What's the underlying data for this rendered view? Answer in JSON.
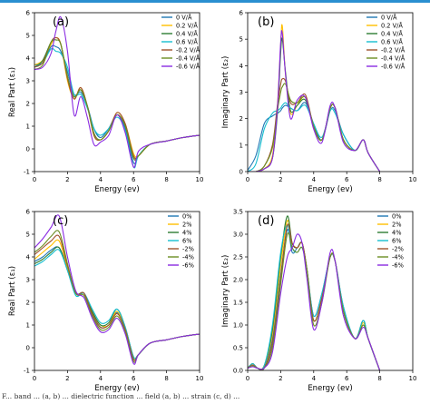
{
  "caption": "F... band ... (a, b) ... dielectric function ... field (a, b) ... strain (c, d) ...",
  "colors": [
    "#1f77b4",
    "#ffbf00",
    "#2e7d32",
    "#17becf",
    "#a0522d",
    "#6b8e23",
    "#8a2be2"
  ],
  "chart_data": [
    {
      "type": "line",
      "panel_label": "(a)",
      "xlabel": "Energy (ev)",
      "ylabel": "Real Part (ε₁)",
      "xlim": [
        0,
        10
      ],
      "ylim": [
        -1,
        6
      ],
      "xticks": [
        0,
        2,
        4,
        6,
        8,
        10
      ],
      "yticks": [
        -1,
        0,
        1,
        2,
        3,
        4,
        5,
        6
      ],
      "legend_position": "top-right",
      "x": [
        0,
        0.5,
        1.0,
        1.3,
        1.6,
        2.0,
        2.4,
        2.8,
        3.2,
        3.6,
        4.0,
        4.5,
        5.0,
        5.5,
        6.0,
        6.3,
        7.0,
        8.0,
        9.0,
        10.0
      ],
      "series": [
        {
          "name": "0 V/Å",
          "values": [
            3.7,
            3.8,
            4.5,
            4.5,
            4.3,
            3.4,
            2.4,
            2.5,
            1.9,
            0.9,
            0.5,
            0.9,
            1.5,
            0.9,
            -0.6,
            -0.3,
            0.2,
            0.35,
            0.5,
            0.6
          ]
        },
        {
          "name": "0.2 V/Å",
          "values": [
            3.7,
            3.9,
            4.6,
            4.9,
            4.6,
            3.0,
            2.2,
            2.7,
            1.9,
            0.6,
            0.4,
            0.8,
            1.6,
            1.1,
            -0.2,
            -0.3,
            0.2,
            0.35,
            0.5,
            0.6
          ]
        },
        {
          "name": "0.4 V/Å",
          "values": [
            3.6,
            3.9,
            4.7,
            4.8,
            4.6,
            3.2,
            2.3,
            2.6,
            1.9,
            0.7,
            0.4,
            0.8,
            1.5,
            1.0,
            -0.4,
            -0.3,
            0.2,
            0.35,
            0.5,
            0.6
          ]
        },
        {
          "name": "0.6 V/Å",
          "values": [
            3.6,
            3.8,
            4.4,
            4.3,
            4.2,
            3.6,
            2.4,
            2.4,
            1.8,
            0.9,
            0.6,
            0.9,
            1.4,
            0.8,
            -0.8,
            -0.3,
            0.2,
            0.35,
            0.5,
            0.6
          ]
        },
        {
          "name": "-0.2 V/Å",
          "values": [
            3.6,
            3.8,
            4.7,
            4.9,
            4.6,
            3.1,
            2.2,
            2.7,
            1.9,
            0.6,
            0.4,
            0.8,
            1.6,
            1.1,
            -0.3,
            -0.3,
            0.2,
            0.35,
            0.5,
            0.6
          ]
        },
        {
          "name": "-0.4 V/Å",
          "values": [
            3.5,
            3.7,
            4.7,
            4.8,
            4.6,
            3.2,
            2.3,
            2.6,
            1.9,
            0.7,
            0.4,
            0.8,
            1.5,
            1.0,
            -0.4,
            -0.3,
            0.2,
            0.35,
            0.5,
            0.6
          ]
        },
        {
          "name": "-0.6 V/Å",
          "values": [
            3.5,
            3.6,
            4.2,
            5.2,
            5.8,
            4.3,
            1.5,
            2.3,
            1.4,
            0.2,
            0.3,
            0.6,
            1.5,
            0.7,
            -0.8,
            -0.1,
            0.2,
            0.35,
            0.5,
            0.6
          ]
        }
      ]
    },
    {
      "type": "line",
      "panel_label": "(b)",
      "xlabel": "Energy (ev)",
      "ylabel": "Imaginary Part (ε₂)",
      "xlim": [
        0,
        10
      ],
      "ylim": [
        0,
        6
      ],
      "xticks": [
        0,
        2,
        4,
        6,
        8,
        10
      ],
      "yticks": [
        0,
        1,
        2,
        3,
        4,
        5,
        6
      ],
      "legend_position": "top-right",
      "x": [
        0,
        0.5,
        1.0,
        1.5,
        1.8,
        2.0,
        2.1,
        2.3,
        2.6,
        3.0,
        3.5,
        4.0,
        4.5,
        5.0,
        5.3,
        5.8,
        6.5,
        7.0,
        7.3,
        8.0
      ],
      "series": [
        {
          "name": "0 V/Å",
          "values": [
            0.05,
            0.6,
            1.8,
            2.1,
            2.2,
            2.3,
            2.4,
            2.5,
            2.4,
            2.3,
            2.6,
            1.8,
            1.2,
            2.3,
            2.3,
            1.4,
            0.8,
            1.2,
            0.7,
            0.0
          ]
        },
        {
          "name": "0.2 V/Å",
          "values": [
            0.0,
            0.0,
            0.1,
            0.6,
            2.5,
            4.8,
            5.5,
            3.6,
            2.2,
            2.5,
            2.8,
            1.7,
            1.2,
            2.4,
            2.4,
            1.2,
            0.8,
            1.2,
            0.7,
            0.0
          ]
        },
        {
          "name": "0.4 V/Å",
          "values": [
            0.0,
            0.0,
            0.1,
            0.5,
            2.2,
            4.5,
            5.0,
            3.7,
            2.3,
            2.5,
            2.7,
            1.7,
            1.2,
            2.4,
            2.4,
            1.2,
            0.8,
            1.2,
            0.7,
            0.0
          ]
        },
        {
          "name": "0.6 V/Å",
          "values": [
            0.0,
            0.3,
            1.6,
            2.2,
            2.3,
            2.4,
            2.5,
            2.6,
            2.4,
            2.3,
            2.5,
            1.8,
            1.3,
            2.3,
            2.2,
            1.4,
            0.8,
            1.2,
            0.7,
            0.0
          ]
        },
        {
          "name": "-0.2 V/Å",
          "values": [
            0.0,
            0.0,
            0.2,
            1.0,
            2.5,
            3.3,
            3.5,
            3.4,
            2.6,
            2.6,
            2.9,
            1.7,
            1.2,
            2.4,
            2.4,
            1.2,
            0.8,
            1.2,
            0.7,
            0.0
          ]
        },
        {
          "name": "-0.4 V/Å",
          "values": [
            0.0,
            0.0,
            0.2,
            0.9,
            2.3,
            3.0,
            3.2,
            3.3,
            2.7,
            2.6,
            2.8,
            1.7,
            1.2,
            2.4,
            2.4,
            1.2,
            0.8,
            1.2,
            0.7,
            0.0
          ]
        },
        {
          "name": "-0.6 V/Å",
          "values": [
            0.0,
            0.0,
            0.1,
            0.5,
            2.4,
            4.9,
            5.2,
            3.6,
            2.0,
            2.7,
            2.8,
            1.6,
            1.1,
            2.5,
            2.4,
            1.1,
            0.8,
            1.2,
            0.7,
            0.0
          ]
        }
      ]
    },
    {
      "type": "line",
      "panel_label": "(c)",
      "xlabel": "Energy (ev)",
      "ylabel": "Real Part (ε₁)",
      "xlim": [
        0,
        10
      ],
      "ylim": [
        -1,
        6
      ],
      "xticks": [
        0,
        2,
        4,
        6,
        8,
        10
      ],
      "yticks": [
        -1,
        0,
        1,
        2,
        3,
        4,
        5,
        6
      ],
      "legend_position": "top-right",
      "x": [
        0,
        0.5,
        1.0,
        1.5,
        2.0,
        2.5,
        3.0,
        3.5,
        4.0,
        4.5,
        5.0,
        5.5,
        6.0,
        6.3,
        7.0,
        8.0,
        9.0,
        10.0
      ],
      "series": [
        {
          "name": "0%",
          "values": [
            3.8,
            4.0,
            4.3,
            4.4,
            3.5,
            2.4,
            2.4,
            1.5,
            0.9,
            1.0,
            1.55,
            0.8,
            -0.5,
            -0.3,
            0.2,
            0.35,
            0.5,
            0.6
          ]
        },
        {
          "name": "2%",
          "values": [
            3.9,
            4.2,
            4.5,
            4.7,
            3.5,
            2.4,
            2.4,
            1.6,
            1.0,
            1.0,
            1.6,
            0.8,
            -0.5,
            -0.3,
            0.2,
            0.35,
            0.5,
            0.6
          ]
        },
        {
          "name": "4%",
          "values": [
            3.7,
            3.9,
            4.2,
            4.4,
            3.4,
            2.4,
            2.4,
            1.6,
            1.0,
            1.1,
            1.7,
            0.9,
            -0.4,
            -0.3,
            0.2,
            0.35,
            0.5,
            0.6
          ]
        },
        {
          "name": "6%",
          "values": [
            3.6,
            3.8,
            4.1,
            4.3,
            3.4,
            2.3,
            2.4,
            1.7,
            1.1,
            1.2,
            1.7,
            0.9,
            -0.4,
            -0.3,
            0.2,
            0.35,
            0.5,
            0.6
          ]
        },
        {
          "name": "-2%",
          "values": [
            4.1,
            4.4,
            4.7,
            4.9,
            3.6,
            2.4,
            2.4,
            1.5,
            0.9,
            1.0,
            1.5,
            0.8,
            -0.5,
            -0.3,
            0.2,
            0.35,
            0.5,
            0.6
          ]
        },
        {
          "name": "-4%",
          "values": [
            4.2,
            4.5,
            4.9,
            5.1,
            3.7,
            2.4,
            2.3,
            1.4,
            0.8,
            0.9,
            1.4,
            0.7,
            -0.6,
            -0.3,
            0.2,
            0.35,
            0.5,
            0.6
          ]
        },
        {
          "name": "-6%",
          "values": [
            4.4,
            4.8,
            5.3,
            5.8,
            4.0,
            2.5,
            2.2,
            1.3,
            0.7,
            0.8,
            1.3,
            0.6,
            -0.7,
            -0.3,
            0.2,
            0.35,
            0.5,
            0.6
          ]
        }
      ]
    },
    {
      "type": "line",
      "panel_label": "(d)",
      "xlabel": "Energy (ev)",
      "ylabel": "Imaginary Part (ε₂)",
      "xlim": [
        0,
        10
      ],
      "ylim": [
        0,
        3.5
      ],
      "xticks": [
        0,
        2,
        4,
        6,
        8,
        10
      ],
      "yticks": [
        0.0,
        0.5,
        1.0,
        1.5,
        2.0,
        2.5,
        3.0,
        3.5
      ],
      "legend_position": "top-right",
      "x": [
        0,
        0.3,
        0.6,
        1.0,
        1.5,
        2.0,
        2.4,
        2.7,
        3.0,
        3.3,
        3.6,
        4.0,
        4.5,
        5.0,
        5.3,
        5.8,
        6.5,
        7.0,
        7.3,
        8.0
      ],
      "series": [
        {
          "name": "0%",
          "values": [
            0.05,
            0.15,
            0.05,
            0.05,
            0.7,
            2.1,
            3.1,
            2.6,
            2.7,
            2.8,
            2.2,
            1.2,
            1.7,
            2.5,
            2.4,
            1.4,
            0.7,
            1.1,
            0.7,
            0.0
          ]
        },
        {
          "name": "2%",
          "values": [
            0.05,
            0.15,
            0.05,
            0.1,
            0.8,
            2.3,
            3.3,
            2.8,
            2.7,
            2.8,
            2.2,
            1.1,
            1.6,
            2.5,
            2.4,
            1.3,
            0.7,
            1.05,
            0.7,
            0.0
          ]
        },
        {
          "name": "4%",
          "values": [
            0.05,
            0.15,
            0.05,
            0.1,
            0.9,
            2.5,
            3.4,
            2.8,
            2.7,
            2.8,
            2.2,
            1.1,
            1.6,
            2.5,
            2.4,
            1.3,
            0.7,
            1.1,
            0.7,
            0.0
          ]
        },
        {
          "name": "6%",
          "values": [
            0.05,
            0.15,
            0.05,
            0.1,
            1.0,
            2.6,
            3.2,
            2.7,
            2.6,
            2.7,
            2.2,
            1.2,
            1.7,
            2.5,
            2.4,
            1.4,
            0.7,
            1.1,
            0.7,
            0.0
          ]
        },
        {
          "name": "-2%",
          "values": [
            0.05,
            0.12,
            0.05,
            0.05,
            0.6,
            2.0,
            3.2,
            2.8,
            2.7,
            2.8,
            2.2,
            1.1,
            1.6,
            2.5,
            2.4,
            1.3,
            0.7,
            1.0,
            0.7,
            0.0
          ]
        },
        {
          "name": "-4%",
          "values": [
            0.05,
            0.1,
            0.05,
            0.05,
            0.5,
            1.9,
            3.0,
            2.7,
            2.6,
            2.7,
            2.2,
            1.0,
            1.5,
            2.5,
            2.4,
            1.3,
            0.7,
            1.0,
            0.7,
            0.0
          ]
        },
        {
          "name": "-6%",
          "values": [
            0.05,
            0.08,
            0.05,
            0.05,
            0.4,
            1.7,
            2.5,
            2.7,
            3.0,
            2.8,
            2.0,
            0.9,
            1.5,
            2.6,
            2.4,
            1.2,
            0.7,
            0.95,
            0.7,
            0.0
          ]
        }
      ]
    }
  ]
}
